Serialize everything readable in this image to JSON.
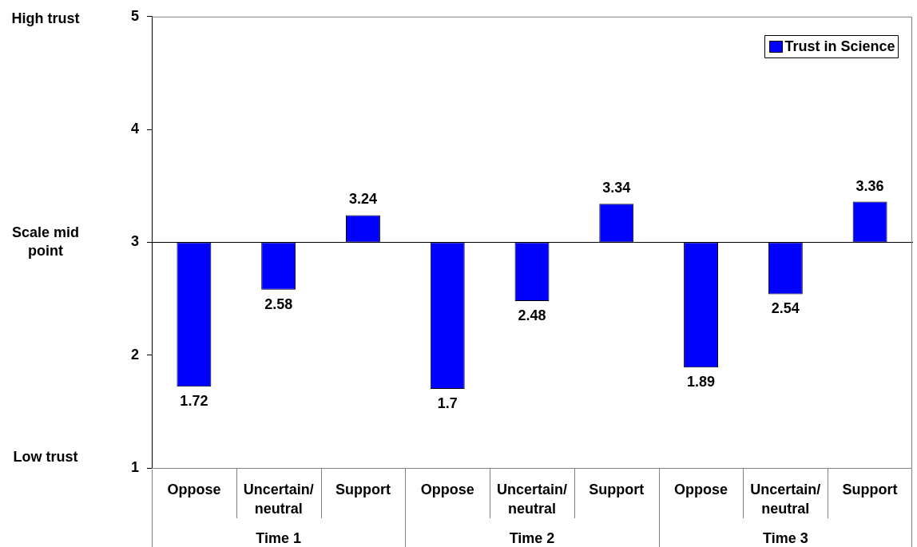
{
  "chart_data": {
    "type": "bar",
    "categories": [
      "Oppose",
      "Uncertain/neutral",
      "Support",
      "Oppose",
      "Uncertain/neutral",
      "Support",
      "Oppose",
      "Uncertain/neutral",
      "Support"
    ],
    "series": [
      {
        "name": "Trust in Science",
        "color": "#0000ff",
        "base": [
          3,
          3,
          3,
          3,
          3,
          3,
          3,
          3,
          3
        ],
        "values": [
          -1.28,
          -0.42,
          0.24,
          -1.3,
          -0.52,
          0.34,
          -1.11,
          -0.46,
          0.36
        ],
        "value_labels": [
          "1.72",
          "2.58",
          "3.24",
          "1.7",
          "2.48",
          "3.34",
          "1.89",
          "2.54",
          "3.36"
        ]
      }
    ],
    "ylim": [
      1,
      5
    ],
    "yticks": [
      1,
      2,
      3,
      4,
      5
    ],
    "legend": "top right",
    "ref_lines": [
      {
        "axis": "y",
        "value": 3,
        "label": "Scale mid point",
        "color": "#000000"
      }
    ],
    "annotations": [
      "High trust",
      "Low trust",
      "Time 1",
      "Time 2",
      "Time 3"
    ]
  }
}
